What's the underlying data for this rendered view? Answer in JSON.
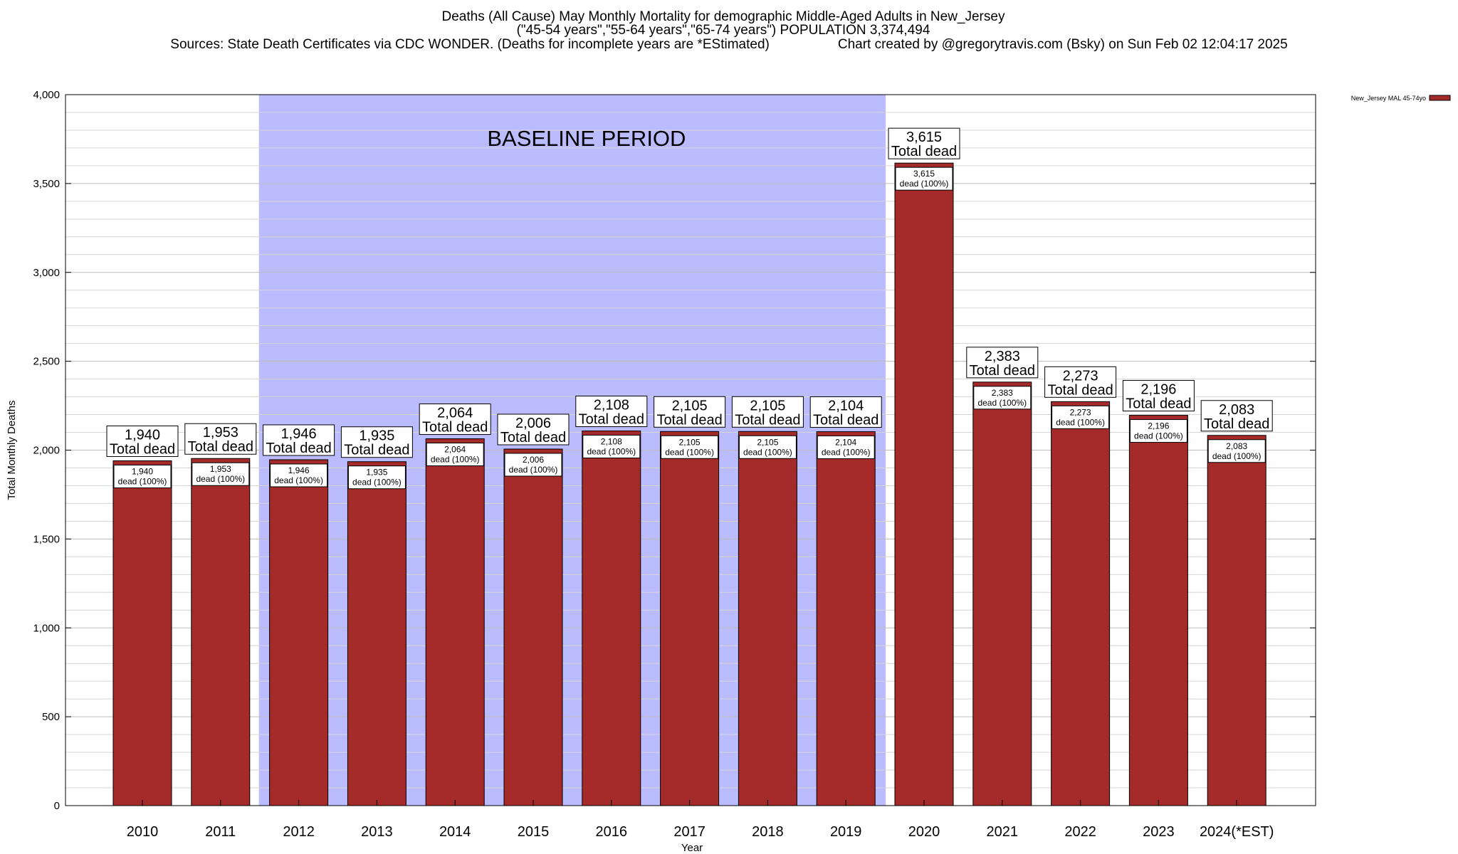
{
  "header": {
    "title": "Deaths (All Cause) May Monthly Mortality for demographic Middle-Aged Adults in New_Jersey",
    "subtitle": "(\"45-54 years\",\"55-64 years\",\"65-74 years\") POPULATION 3,374,494",
    "sources": "Sources: State Death Certificates via CDC WONDER. (Deaths for incomplete years are *EStimated)",
    "credit": "Chart created by @gregorytravis.com (Bsky) on Sun Feb 02 12:04:17 2025"
  },
  "chart_data": {
    "type": "bar",
    "xlabel": "Year",
    "ylabel": "Total Monthly Deaths",
    "ylim": [
      0,
      4000
    ],
    "yticks": [
      0,
      500,
      1000,
      1500,
      2000,
      2500,
      3000,
      3500,
      4000
    ],
    "ytick_labels": [
      "0",
      "500",
      "1,000",
      "1,500",
      "2,000",
      "2,500",
      "3,000",
      "3,500",
      "4,000"
    ],
    "categories": [
      "2010",
      "2011",
      "2012",
      "2013",
      "2014",
      "2015",
      "2016",
      "2017",
      "2018",
      "2019",
      "2020",
      "2021",
      "2022",
      "2023",
      "2024(*EST)"
    ],
    "series": [
      {
        "name": "New_Jersey MAL 45-74yo",
        "color": "#a52a2a",
        "values": [
          1940,
          1953,
          1946,
          1935,
          2064,
          2006,
          2108,
          2105,
          2105,
          2104,
          3615,
          2383,
          2273,
          2196,
          2083
        ]
      }
    ],
    "value_labels": [
      "1,940",
      "1,953",
      "1,946",
      "1,935",
      "2,064",
      "2,006",
      "2,108",
      "2,105",
      "2,105",
      "2,104",
      "3,615",
      "2,383",
      "2,273",
      "2,196",
      "2,083"
    ],
    "total_label": "Total dead",
    "segment_label": "dead (100%)",
    "baseline": {
      "label": "BASELINE PERIOD",
      "from": "2012",
      "to": "2019",
      "color": "#bbbbff"
    },
    "grid": true,
    "legend_position": "top-right"
  }
}
